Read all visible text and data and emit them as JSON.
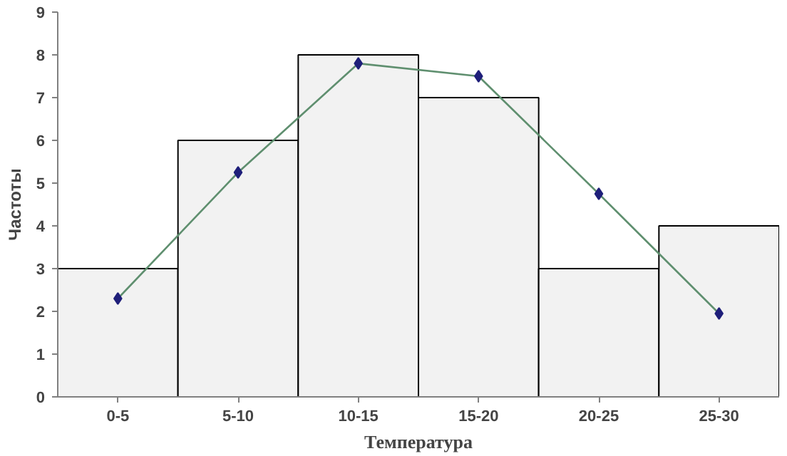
{
  "chart_data": {
    "type": "bar",
    "xlabel": "Температура",
    "ylabel": "Частоты",
    "categories": [
      "0-5",
      "5-10",
      "10-15",
      "15-20",
      "20-25",
      "25-30"
    ],
    "ylim": [
      0,
      9
    ],
    "yticks": [
      0,
      1,
      2,
      3,
      4,
      5,
      6,
      7,
      8,
      9
    ],
    "grid": false,
    "series": [
      {
        "color": "#f2f2f2",
        "values": [
          3,
          6,
          8,
          7,
          3,
          4
        ]
      },
      {
        "type": "line",
        "color": "#5f8f6f",
        "marker": "none",
        "values": [
          2.3,
          5.25,
          7.8,
          7.5,
          4.75,
          1.95
        ]
      },
      {
        "type": "scatter",
        "color": "#1f1f7a",
        "marker": "diamond",
        "values": [
          2.3,
          5.25,
          7.8,
          7.5,
          4.75,
          1.95
        ]
      }
    ]
  }
}
